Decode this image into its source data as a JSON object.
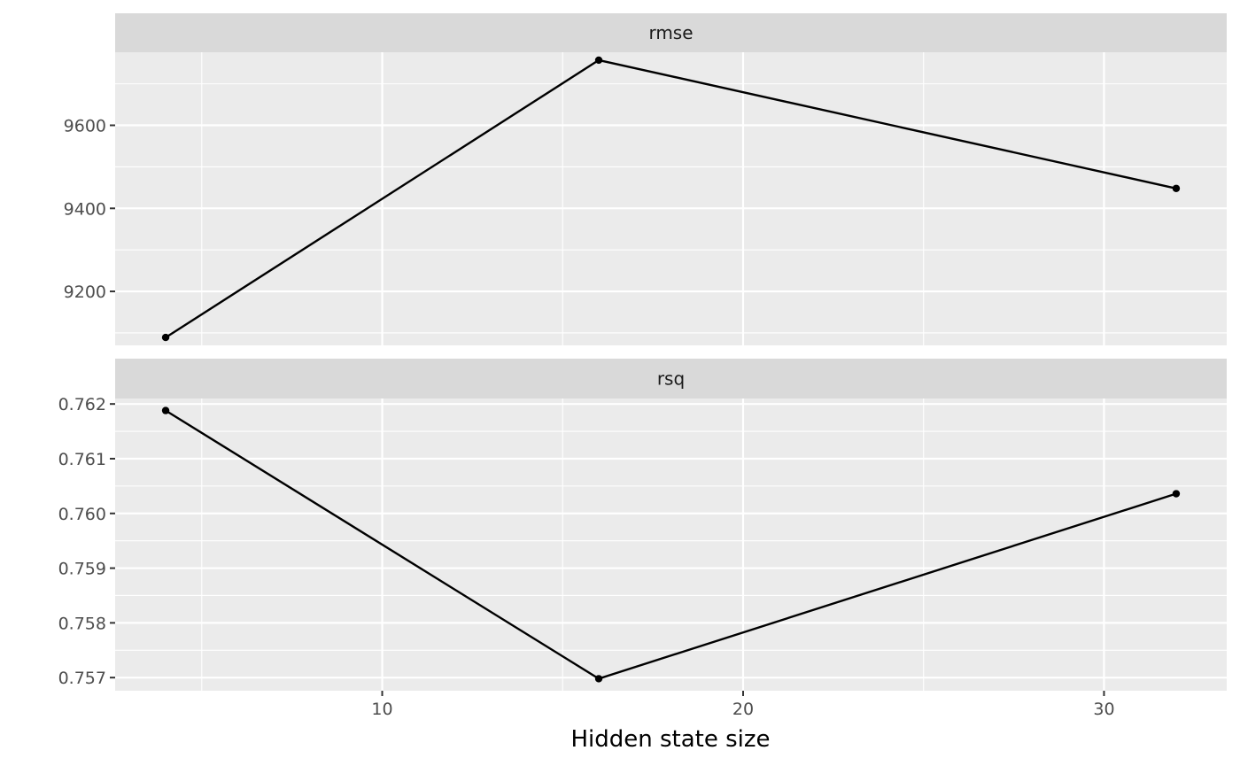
{
  "chart_data": {
    "type": "line",
    "xlabel": "Hidden state size",
    "ylabel": "",
    "x_ticks": [
      10,
      20,
      30
    ],
    "x_minor_ticks": [
      5,
      15,
      25
    ],
    "xlim": [
      2.6,
      33.4
    ],
    "colors": {
      "panel_bg": "#EBEBEB",
      "strip_bg": "#D9D9D9",
      "grid": "#FFFFFF",
      "line": "#000000",
      "text": "#4D4D4D"
    },
    "facets": [
      {
        "label": "rmse",
        "x": [
          4,
          16,
          32
        ],
        "y": [
          9089,
          9757,
          9448
        ],
        "ylim": [
          9070,
          9776
        ],
        "y_ticks": [
          9200,
          9400,
          9600
        ],
        "y_tick_labels": [
          "9200",
          "9400",
          "9600"
        ],
        "y_minor_ticks": [
          9100,
          9300,
          9500,
          9700
        ]
      },
      {
        "label": "rsq",
        "x": [
          4,
          16,
          32
        ],
        "y": [
          0.76188,
          0.75698,
          0.76036
        ],
        "ylim": [
          0.75676,
          0.7621
        ],
        "y_ticks": [
          0.757,
          0.758,
          0.759,
          0.76,
          0.761,
          0.762
        ],
        "y_tick_labels": [
          "0.757",
          "0.758",
          "0.759",
          "0.760",
          "0.761",
          "0.762"
        ],
        "y_minor_ticks": [
          0.7575,
          0.7585,
          0.7595,
          0.7605,
          0.7615
        ]
      }
    ]
  }
}
